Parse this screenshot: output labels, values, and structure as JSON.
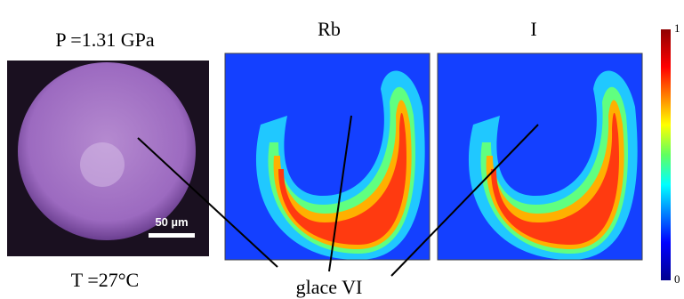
{
  "panels": {
    "photo": {
      "pressure": "P =1.31 GPa",
      "temperature": "T =27°C",
      "scale_bar": "50 µm"
    },
    "maps": [
      {
        "title": "Rb"
      },
      {
        "title": "I"
      }
    ]
  },
  "annotation": "glace VI",
  "colorbar": {
    "max_label": "1",
    "min_label": "0"
  }
}
